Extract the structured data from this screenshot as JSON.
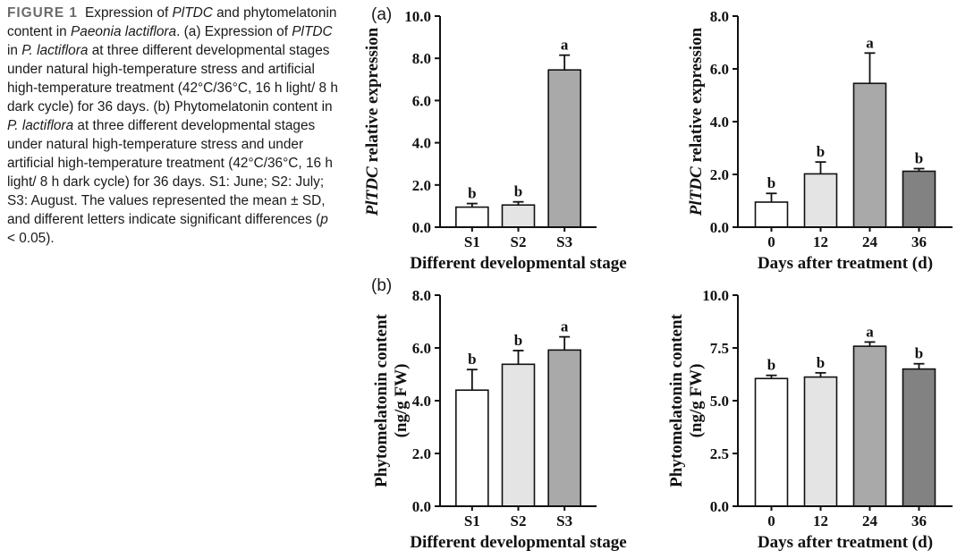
{
  "caption": {
    "figure_label": "FIGURE 1",
    "p1": "Expression of ",
    "gene1": "PlTDC",
    "p2": " and phytomelatonin content in ",
    "species1": "Paeonia lactiflora",
    "p3": ". (a) Expression of ",
    "gene2": "PlTDC",
    "p4": " in ",
    "species2": "P. lactiflora",
    "p5": " at three different developmental stages under natural high-temperature stress and artificial high-temperature treatment (42°C/36°C, 16 h light/ 8 h dark cycle) for 36 days. (b) Phytomelatonin content in ",
    "species3": "P. lactiflora",
    "p6": " at three different developmental stages under natural high-temperature stress and under artificial high-temperature treatment (42°C/36°C, 16 h light/ 8 h dark cycle) for 36 days. S1: June; S2: July; S3: August. The values represented the mean ± SD, and different letters indicate significant differences (",
    "p_symbol": "p",
    "p7": " < 0.05)."
  },
  "panel_tags": {
    "a": "(a)",
    "b": "(b)"
  },
  "colors": {
    "white": "#ffffff",
    "light_gray": "#e4e4e4",
    "mid_gray": "#a9a9a9",
    "dark_gray": "#828282",
    "outline": "#111111"
  },
  "chart_data": [
    {
      "id": "chart-a-left",
      "type": "bar",
      "categories": [
        "S1",
        "S2",
        "S3"
      ],
      "values": [
        0.95,
        1.05,
        7.45
      ],
      "errors": [
        0.17,
        0.15,
        0.7
      ],
      "significance": [
        "b",
        "b",
        "a"
      ],
      "fill_colors": [
        "#ffffff",
        "#e4e4e4",
        "#a9a9a9"
      ],
      "xlabel": "Different developmental stage",
      "ylabel_italic": "PlTDC",
      "ylabel_rest": " relative expression",
      "ylim": [
        0,
        10
      ],
      "yticks": [
        0,
        2,
        4,
        6,
        8,
        10
      ],
      "ytick_labels": [
        "0.0",
        "2.0",
        "4.0",
        "6.0",
        "8.0",
        "10.0"
      ]
    },
    {
      "id": "chart-a-right",
      "type": "bar",
      "categories": [
        "0",
        "12",
        "24",
        "36"
      ],
      "values": [
        0.95,
        2.02,
        5.45,
        2.12
      ],
      "errors": [
        0.33,
        0.45,
        1.15,
        0.1
      ],
      "significance": [
        "b",
        "b",
        "a",
        "b"
      ],
      "fill_colors": [
        "#ffffff",
        "#e4e4e4",
        "#a9a9a9",
        "#828282"
      ],
      "xlabel": "Days after treatment (d)",
      "ylabel_italic": "PlTDC",
      "ylabel_rest": " relative expression",
      "ylim": [
        0,
        8
      ],
      "yticks": [
        0,
        2,
        4,
        6,
        8
      ],
      "ytick_labels": [
        "0.0",
        "2.0",
        "4.0",
        "6.0",
        "8.0"
      ]
    },
    {
      "id": "chart-b-left",
      "type": "bar",
      "categories": [
        "S1",
        "S2",
        "S3"
      ],
      "values": [
        4.4,
        5.38,
        5.92
      ],
      "errors": [
        0.78,
        0.52,
        0.5
      ],
      "significance": [
        "b",
        "b",
        "a"
      ],
      "fill_colors": [
        "#ffffff",
        "#e4e4e4",
        "#a9a9a9"
      ],
      "xlabel": "Different developmental stage",
      "ylabel_line1": "Phytomelatonin content",
      "ylabel_line2": "(ng/g FW)",
      "ylim": [
        0,
        8
      ],
      "yticks": [
        0,
        2,
        4,
        6,
        8
      ],
      "ytick_labels": [
        "0.0",
        "2.0",
        "4.0",
        "6.0",
        "8.0"
      ]
    },
    {
      "id": "chart-b-right",
      "type": "bar",
      "categories": [
        "0",
        "12",
        "24",
        "36"
      ],
      "values": [
        6.05,
        6.12,
        7.58,
        6.5
      ],
      "errors": [
        0.15,
        0.2,
        0.2,
        0.25
      ],
      "significance": [
        "b",
        "b",
        "a",
        "b"
      ],
      "fill_colors": [
        "#ffffff",
        "#e4e4e4",
        "#a9a9a9",
        "#828282"
      ],
      "xlabel": "Days after treatment (d)",
      "ylabel_line1": "Phytomelatonin content",
      "ylabel_line2": "(ng/g FW)",
      "ylim": [
        0,
        10
      ],
      "yticks": [
        0,
        2.5,
        5,
        7.5,
        10
      ],
      "ytick_labels": [
        "0.0",
        "2.5",
        "5.0",
        "7.5",
        "10.0"
      ]
    }
  ]
}
